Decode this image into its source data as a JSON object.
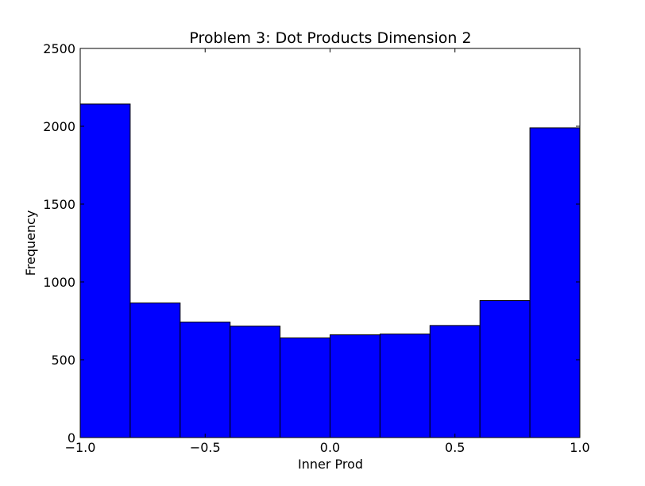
{
  "chart_data": {
    "type": "bar",
    "title": "Problem 3: Dot Products Dimension 2",
    "xlabel": "Inner Prod",
    "ylabel": "Frequency",
    "xlim": [
      -1.0,
      1.0
    ],
    "ylim": [
      0,
      2500
    ],
    "bin_edges": [
      -1.0,
      -0.8,
      -0.6,
      -0.4,
      -0.2,
      0.0,
      0.2,
      0.4,
      0.6,
      0.8,
      1.0
    ],
    "values": [
      2143,
      865,
      742,
      716,
      640,
      660,
      665,
      720,
      880,
      1990
    ],
    "bar_color": "#0000ff",
    "edge_color": "#000000",
    "xticks": [
      -1.0,
      -0.5,
      0.0,
      0.5,
      1.0
    ],
    "xtick_labels": [
      "−1.0",
      "−0.5",
      "0.0",
      "0.5",
      "1.0"
    ],
    "yticks": [
      0,
      500,
      1000,
      1500,
      2000,
      2500
    ],
    "ytick_labels": [
      "0",
      "500",
      "1000",
      "1500",
      "2000",
      "2500"
    ],
    "grid": false,
    "legend": false
  }
}
